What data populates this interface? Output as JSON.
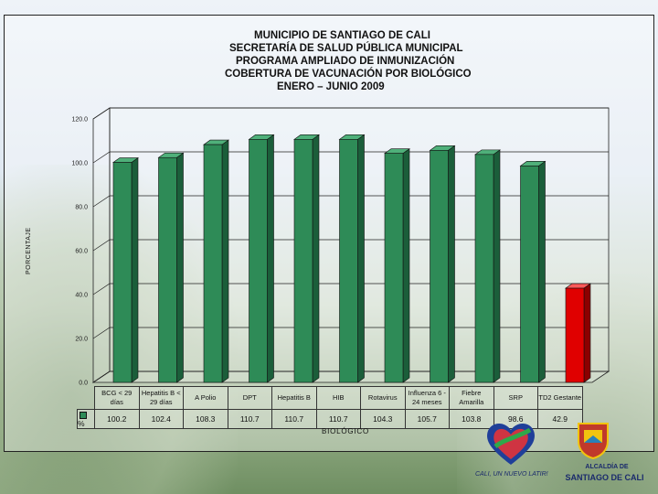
{
  "chart_data": {
    "type": "bar",
    "title_lines": [
      "MUNICIPIO DE SANTIAGO DE CALI",
      "SECRETARÍA DE SALUD PÚBLICA MUNICIPAL",
      "PROGRAMA AMPLIADO DE INMUNIZACIÓN",
      "COBERTURA DE VACUNACIÓN POR BIOLÓGICO",
      "ENERO – JUNIO 2009"
    ],
    "xlabel": "BIOLÓGICO",
    "ylabel": "PORCENTAJE",
    "ylim": [
      0,
      120
    ],
    "yticks": [
      "0.0",
      "20.0",
      "40.0",
      "60.0",
      "80.0",
      "100.0",
      "120.0"
    ],
    "grid": true,
    "categories": [
      "BCG < 29 días",
      "Hepatitis B < 29 días",
      "A Polio",
      "DPT",
      "Hepatitis B",
      "HIB",
      "Rotavirus",
      "Influenza 6 - 24 meses",
      "Fiebre Amarilla",
      "SRP",
      "TD2 Gestante"
    ],
    "series": [
      {
        "name": "%",
        "values": [
          100.2,
          102.4,
          108.3,
          110.7,
          110.7,
          110.7,
          104.3,
          105.7,
          103.8,
          98.6,
          42.9
        ],
        "value_labels": [
          "100.2",
          "102.4",
          "108.3",
          "110.7",
          "110.7",
          "110.7",
          "104.3",
          "105.7",
          "103.8",
          "98.6",
          "42.9"
        ]
      }
    ],
    "colors": {
      "bar": "#2e8b57",
      "bar_highlight": "#e00000",
      "highlight_index": 10
    }
  },
  "footer": {
    "slogan": "CALI, UN NUEVO LATIR!",
    "alcaldia_line1": "ALCALDÍA DE",
    "alcaldia_line2": "SANTIAGO DE CALI"
  }
}
